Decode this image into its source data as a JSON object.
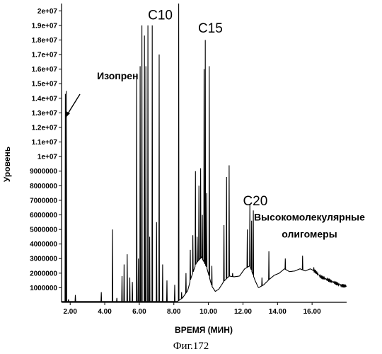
{
  "chart_data": {
    "type": "line",
    "title": "",
    "xlabel": "ВРЕМЯ (МИН)",
    "ylabel": "Уровень",
    "xlim": [
      1.5,
      18.0
    ],
    "ylim": [
      0,
      20500000
    ],
    "xticks": [
      {
        "v": 2,
        "label": "2.00"
      },
      {
        "v": 4,
        "label": "4.00"
      },
      {
        "v": 6,
        "label": "6.00"
      },
      {
        "v": 8,
        "label": "8.00"
      },
      {
        "v": 10,
        "label": "10.00"
      },
      {
        "v": 12,
        "label": "12.00"
      },
      {
        "v": 14,
        "label": "14.00"
      },
      {
        "v": 16,
        "label": "16.00"
      }
    ],
    "yticks": [
      {
        "v": 1000000,
        "label": "1000000"
      },
      {
        "v": 2000000,
        "label": "2000000"
      },
      {
        "v": 3000000,
        "label": "3000000"
      },
      {
        "v": 4000000,
        "label": "4000000"
      },
      {
        "v": 5000000,
        "label": "5000000"
      },
      {
        "v": 6000000,
        "label": "6000000"
      },
      {
        "v": 7000000,
        "label": "7000000"
      },
      {
        "v": 8000000,
        "label": "8000000"
      },
      {
        "v": 9000000,
        "label": "9000000"
      },
      {
        "v": 10000000,
        "label": "1e+07"
      },
      {
        "v": 11000000,
        "label": "1.1e+07"
      },
      {
        "v": 12000000,
        "label": "1.2e+07"
      },
      {
        "v": 13000000,
        "label": "1.3e+07"
      },
      {
        "v": 14000000,
        "label": "1.4e+07"
      },
      {
        "v": 15000000,
        "label": "1.5e+07"
      },
      {
        "v": 16000000,
        "label": "1.6e+07"
      },
      {
        "v": 17000000,
        "label": "1.7e+07"
      },
      {
        "v": 18000000,
        "label": "1.8e+07"
      },
      {
        "v": 19000000,
        "label": "1.9e+07"
      },
      {
        "v": 20000000,
        "label": "2e+07"
      }
    ],
    "series": [
      {
        "baseline": [
          [
            1.5,
            60000
          ],
          [
            8.2,
            60000
          ],
          [
            8.5,
            300000
          ],
          [
            8.8,
            800000
          ],
          [
            9.0,
            1700000
          ],
          [
            9.3,
            2700000
          ],
          [
            9.6,
            3100000
          ],
          [
            9.9,
            2400000
          ],
          [
            10.2,
            1100000
          ],
          [
            10.4,
            750000
          ],
          [
            10.6,
            900000
          ],
          [
            10.9,
            1450000
          ],
          [
            11.2,
            1800000
          ],
          [
            11.5,
            1750000
          ],
          [
            11.8,
            1800000
          ],
          [
            12.1,
            2300000
          ],
          [
            12.4,
            2500000
          ],
          [
            12.7,
            1500000
          ],
          [
            12.9,
            1000000
          ],
          [
            13.2,
            1200000
          ],
          [
            13.5,
            1550000
          ],
          [
            13.8,
            1850000
          ],
          [
            14.1,
            2000000
          ],
          [
            14.4,
            2300000
          ],
          [
            14.7,
            2100000
          ],
          [
            15.0,
            2150000
          ],
          [
            15.3,
            2300000
          ],
          [
            15.6,
            2150000
          ],
          [
            15.9,
            2300000
          ],
          [
            16.2,
            2100000
          ],
          [
            16.5,
            1750000
          ],
          [
            16.8,
            1600000
          ],
          [
            17.1,
            1450000
          ],
          [
            17.4,
            1300000
          ],
          [
            17.7,
            1150000
          ],
          [
            18.0,
            1100000
          ]
        ],
        "peaks": [
          [
            1.72,
            14300000
          ],
          [
            1.78,
            14500000
          ],
          [
            1.9,
            200000
          ],
          [
            2.3,
            500000
          ],
          [
            3.8,
            700000
          ],
          [
            4.45,
            5000000
          ],
          [
            4.7,
            300000
          ],
          [
            5.0,
            1800000
          ],
          [
            5.12,
            2600000
          ],
          [
            5.3,
            3300000
          ],
          [
            5.45,
            1700000
          ],
          [
            5.6,
            1400000
          ],
          [
            5.85,
            15700000
          ],
          [
            5.95,
            3000000
          ],
          [
            6.05,
            16200000
          ],
          [
            6.15,
            19000000
          ],
          [
            6.3,
            18300000
          ],
          [
            6.38,
            16200000
          ],
          [
            6.5,
            19000000
          ],
          [
            6.6,
            4500000
          ],
          [
            6.75,
            19000000
          ],
          [
            7.0,
            5500000
          ],
          [
            7.15,
            17000000
          ],
          [
            7.35,
            2600000
          ],
          [
            7.6,
            1500000
          ],
          [
            8.05,
            1200000
          ],
          [
            8.28,
            20500000
          ],
          [
            8.45,
            700000
          ],
          [
            8.7,
            2000000
          ],
          [
            8.95,
            3600000
          ],
          [
            9.1,
            4600000
          ],
          [
            9.25,
            9000000
          ],
          [
            9.35,
            4500000
          ],
          [
            9.45,
            8000000
          ],
          [
            9.55,
            9200000
          ],
          [
            9.65,
            6000000
          ],
          [
            9.75,
            16000000
          ],
          [
            9.82,
            18000000
          ],
          [
            9.9,
            7500000
          ],
          [
            10.05,
            16200000
          ],
          [
            10.2,
            2500000
          ],
          [
            10.9,
            5300000
          ],
          [
            11.05,
            8600000
          ],
          [
            11.2,
            9400000
          ],
          [
            11.4,
            2000000
          ],
          [
            12.25,
            5000000
          ],
          [
            12.4,
            6700000
          ],
          [
            12.5,
            5600000
          ],
          [
            12.6,
            6300000
          ],
          [
            13.1,
            1700000
          ],
          [
            13.5,
            3500000
          ],
          [
            14.45,
            3000000
          ],
          [
            15.45,
            3200000
          ],
          [
            16.1,
            2400000
          ]
        ]
      }
    ],
    "annotations": [
      {
        "text": "C10",
        "x": 6.5,
        "y": 19400000
      },
      {
        "text": "C15",
        "x": 9.4,
        "y": 18500000
      },
      {
        "text": "C20",
        "x": 12.0,
        "y": 6650000
      },
      {
        "text": "Изопрен",
        "x": 3.55,
        "y": 15300000
      },
      {
        "text": "Высокомолекулярные",
        "x": 15.85,
        "y": 5600000
      },
      {
        "text": "олигомеры",
        "x": 15.85,
        "y": 4450000
      }
    ],
    "grid": false,
    "legend": "none"
  },
  "caption": "Фиг.172"
}
